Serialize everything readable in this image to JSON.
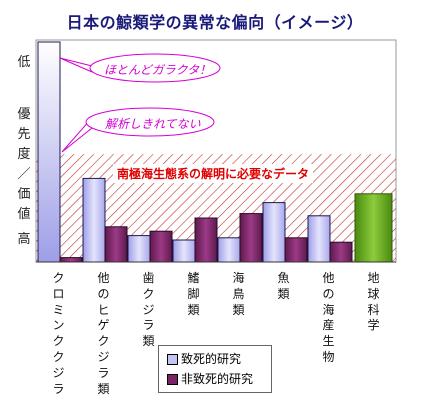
{
  "chart_data": {
    "type": "bar",
    "title": "日本の鯨類学の異常な偏向（イメージ）",
    "ylabel": "優先度／価値",
    "ytick_low": "低",
    "ytick_high": "高",
    "ylim": [
      0,
      100
    ],
    "categories": [
      "クロミンククジラ",
      "他のヒゲクジラ類",
      "歯クジラ類",
      "鰭脚類",
      "海鳥類",
      "魚類",
      "他の海産生物",
      "地球科学"
    ],
    "series": [
      {
        "name": "致死的研究",
        "values": [
          100,
          38,
          12,
          10,
          11,
          27,
          21,
          31
        ]
      },
      {
        "name": "非致死的研究",
        "values": [
          2,
          16,
          14,
          20,
          22,
          11,
          9,
          31
        ]
      }
    ],
    "annotations": {
      "callout_top": "ほとんどガラクタ！",
      "callout_middle": "解析しきれてない",
      "hatch_band_label": "南極海生態系の解明に必要なデータ",
      "hatch_band_value": 49
    }
  },
  "colors": {
    "title": "#1a1a7a",
    "lethal": "#c4c4f4",
    "nonlethal": "#7a2466",
    "earth_science": "#66aa22",
    "hatch": "#c03030",
    "callout": "#d400d4",
    "band_label": "#e00000"
  }
}
